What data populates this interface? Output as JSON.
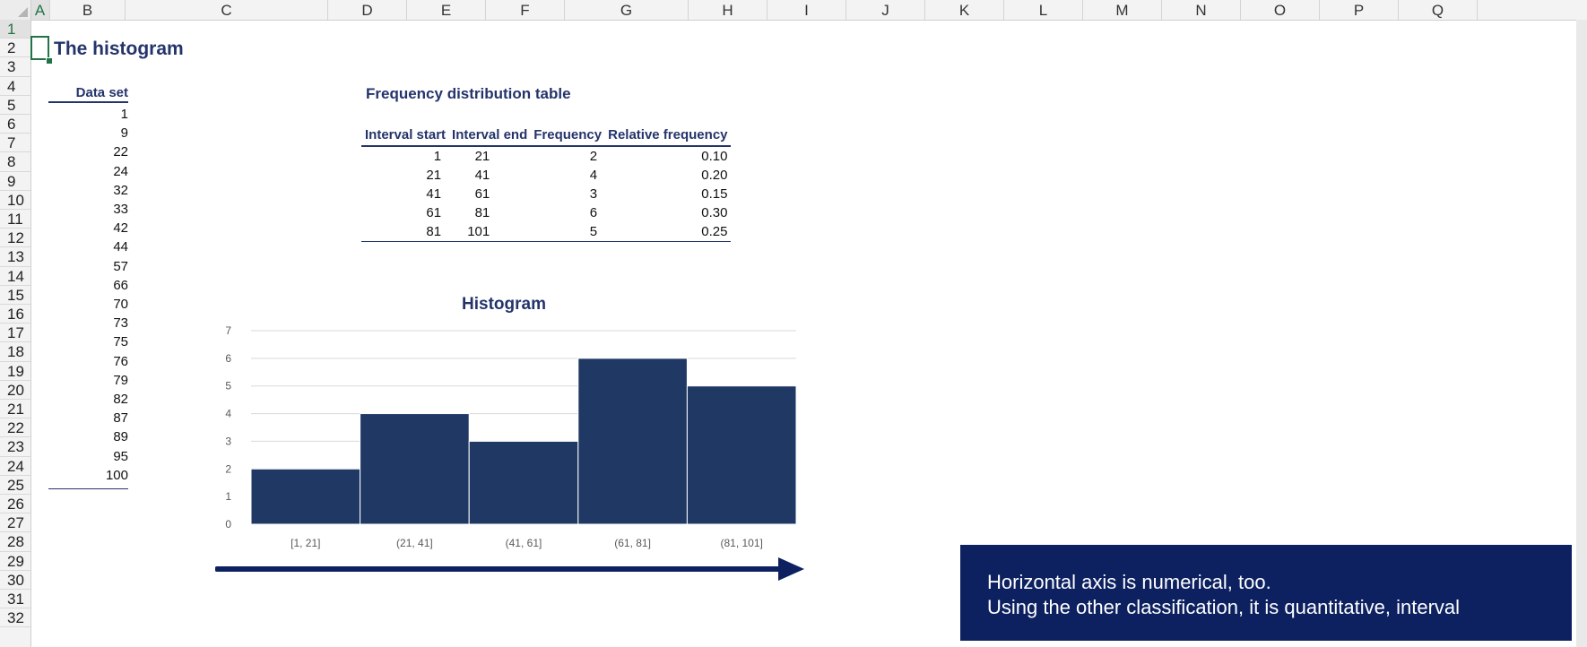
{
  "spreadsheet": {
    "columns": [
      "A",
      "B",
      "C",
      "D",
      "E",
      "F",
      "G",
      "H",
      "I",
      "J",
      "K",
      "L",
      "M",
      "N",
      "O",
      "P",
      "Q"
    ],
    "selected_column": "A",
    "rows": [
      "1",
      "2",
      "3",
      "4",
      "5",
      "6",
      "7",
      "8",
      "9",
      "10",
      "11",
      "12",
      "13",
      "14",
      "15",
      "16",
      "17",
      "18",
      "19",
      "20",
      "21",
      "22",
      "23",
      "24",
      "25",
      "26",
      "27",
      "28",
      "29",
      "30",
      "31",
      "32"
    ],
    "selected_row": "1"
  },
  "title": "The histogram",
  "data_set": {
    "header": "Data set",
    "values": [
      "1",
      "9",
      "22",
      "24",
      "32",
      "33",
      "42",
      "44",
      "57",
      "66",
      "70",
      "73",
      "75",
      "76",
      "79",
      "82",
      "87",
      "89",
      "95",
      "100"
    ]
  },
  "frequency_table": {
    "title": "Frequency distribution table",
    "headers": [
      "Interval start",
      "Interval end",
      "Frequency",
      "Relative frequency"
    ],
    "rows": [
      [
        "1",
        "21",
        "2",
        "0.10"
      ],
      [
        "21",
        "41",
        "4",
        "0.20"
      ],
      [
        "41",
        "61",
        "3",
        "0.15"
      ],
      [
        "61",
        "81",
        "6",
        "0.30"
      ],
      [
        "81",
        "101",
        "5",
        "0.25"
      ]
    ]
  },
  "chart_data": {
    "type": "bar",
    "title": "Histogram",
    "categories": [
      "[1, 21]",
      "(21, 41]",
      "(41, 61]",
      "(61, 81]",
      "(81, 101]"
    ],
    "values": [
      2,
      4,
      3,
      6,
      5
    ],
    "ylim": [
      0,
      7
    ],
    "yticks": [
      "0",
      "1",
      "2",
      "3",
      "4",
      "5",
      "6",
      "7"
    ],
    "xlabel": "",
    "ylabel": "",
    "grid": true,
    "bar_color": "#1f3864",
    "gap_between_bars": false
  },
  "callout": {
    "line1": "Horizontal axis is numerical, too.",
    "line2": "Using the other classification, it is quantitative, interval"
  },
  "colors": {
    "navy": "#24346b",
    "excel_green": "#217346",
    "callout_bg": "#0d2160"
  }
}
